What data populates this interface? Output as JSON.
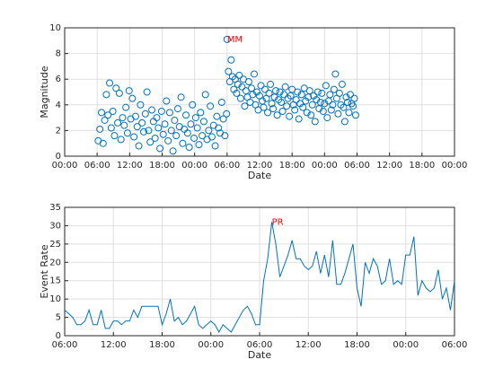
{
  "chart_data": [
    {
      "type": "scatter",
      "xlabel": "Date",
      "ylabel": "Magnitude",
      "color": "#0072bd",
      "grid": true,
      "x": [
        6.2,
        6.5,
        6.8,
        7.1,
        7.4,
        7.7,
        8.0,
        8.3,
        8.6,
        8.9,
        9.2,
        9.5,
        9.8,
        10.1,
        10.4,
        10.7,
        11.0,
        11.3,
        11.6,
        11.9,
        12.2,
        12.5,
        12.8,
        13.1,
        13.4,
        13.7,
        14.0,
        14.3,
        14.6,
        14.9,
        15.2,
        15.5,
        15.8,
        16.1,
        16.4,
        16.7,
        17.0,
        17.3,
        17.6,
        17.9,
        18.2,
        18.5,
        18.8,
        19.1,
        19.4,
        19.7,
        20.0,
        20.3,
        20.6,
        20.9,
        21.2,
        21.5,
        21.8,
        22.1,
        22.4,
        22.7,
        23.0,
        23.3,
        23.6,
        23.9,
        24.2,
        24.5,
        24.8,
        25.1,
        25.4,
        25.7,
        26.0,
        26.3,
        26.6,
        26.9,
        27.2,
        27.5,
        27.8,
        28.1,
        28.4,
        28.7,
        29.0,
        29.3,
        29.6,
        29.9,
        30.0,
        30.25,
        30.5,
        30.75,
        31.0,
        31.25,
        31.5,
        31.75,
        32.0,
        32.25,
        32.5,
        32.75,
        33.0,
        33.25,
        33.5,
        33.75,
        34.0,
        34.25,
        34.5,
        34.75,
        35.0,
        35.25,
        35.5,
        35.75,
        36.0,
        36.25,
        36.5,
        36.75,
        37.0,
        37.25,
        37.5,
        37.75,
        38.0,
        38.25,
        38.5,
        38.75,
        39.0,
        39.25,
        39.5,
        39.75,
        40.0,
        40.25,
        40.5,
        40.75,
        41.0,
        41.25,
        41.5,
        41.75,
        42.0,
        42.25,
        42.5,
        42.75,
        43.0,
        43.25,
        43.5,
        43.75,
        44.0,
        44.25,
        44.5,
        44.75,
        45.0,
        45.25,
        45.5,
        45.75,
        46.0,
        46.25,
        46.5,
        46.75,
        47.0,
        47.25,
        47.5,
        47.75,
        48.0,
        48.25,
        48.5,
        48.75,
        49.0,
        49.25,
        49.5,
        49.75,
        50.0,
        50.25,
        50.5,
        50.75,
        51.0,
        51.25,
        51.5,
        51.75,
        52.0,
        52.25,
        52.5,
        52.75,
        53.0,
        53.25,
        53.5,
        53.75
      ],
      "values": [
        1.2,
        2.1,
        3.4,
        1.0,
        2.8,
        4.8,
        3.2,
        5.7,
        2.2,
        3.5,
        1.6,
        5.3,
        2.6,
        4.9,
        1.3,
        3.0,
        2.4,
        3.8,
        1.8,
        5.1,
        2.9,
        4.5,
        1.5,
        3.1,
        2.3,
        0.8,
        4.0,
        2.6,
        1.9,
        3.3,
        5.0,
        2.0,
        1.1,
        3.6,
        2.7,
        1.4,
        3.0,
        2.2,
        0.6,
        3.5,
        1.7,
        2.5,
        4.3,
        1.2,
        3.4,
        2.0,
        0.4,
        2.8,
        1.6,
        3.7,
        2.3,
        4.6,
        1.0,
        2.1,
        3.2,
        1.8,
        0.7,
        2.5,
        4.0,
        1.4,
        3.0,
        2.2,
        0.9,
        3.4,
        1.6,
        2.7,
        4.8,
        1.3,
        2.0,
        3.9,
        1.5,
        2.4,
        0.8,
        3.1,
        2.2,
        1.8,
        4.2,
        2.9,
        1.6,
        3.3,
        9.1,
        6.6,
        5.8,
        7.5,
        6.2,
        5.2,
        6.0,
        4.9,
        5.6,
        6.3,
        4.5,
        5.4,
        6.0,
        3.9,
        5.1,
        4.6,
        5.8,
        4.2,
        5.3,
        4.8,
        6.4,
        4.0,
        5.0,
        3.6,
        4.7,
        5.5,
        4.3,
        3.8,
        5.2,
        4.5,
        3.4,
        4.9,
        5.6,
        4.1,
        3.7,
        4.6,
        5.1,
        3.2,
        4.4,
        5.0,
        4.2,
        3.5,
        4.8,
        5.4,
        3.9,
        4.5,
        3.1,
        4.7,
        5.2,
        4.0,
        3.6,
        4.4,
        5.0,
        2.9,
        4.1,
        4.8,
        3.8,
        5.3,
        4.3,
        3.4,
        4.6,
        5.1,
        3.2,
        4.0,
        4.7,
        2.7,
        4.4,
        5.0,
        3.7,
        4.2,
        4.9,
        3.5,
        4.1,
        5.5,
        3.0,
        4.3,
        4.8,
        3.6,
        4.0,
        5.2,
        6.4,
        4.5,
        3.3,
        4.9,
        4.0,
        5.6,
        3.8,
        2.7,
        4.6,
        4.2,
        3.4,
        4.8,
        4.1,
        3.9,
        4.5,
        3.2
      ],
      "xlim": [
        0,
        72
      ],
      "xticks": [
        {
          "value": 0,
          "label": "00:00"
        },
        {
          "value": 6,
          "label": "06:00"
        },
        {
          "value": 12,
          "label": "12:00"
        },
        {
          "value": 18,
          "label": "18:00"
        },
        {
          "value": 24,
          "label": "00:00"
        },
        {
          "value": 30,
          "label": "06:00"
        },
        {
          "value": 36,
          "label": "12:00"
        },
        {
          "value": 42,
          "label": "18:00"
        },
        {
          "value": 48,
          "label": "00:00"
        },
        {
          "value": 54,
          "label": "06:00"
        },
        {
          "value": 60,
          "label": "12:00"
        },
        {
          "value": 66,
          "label": "18:00"
        },
        {
          "value": 72,
          "label": "00:00"
        }
      ],
      "ylim": [
        0,
        10
      ],
      "yticks": [
        0,
        2,
        4,
        6,
        8,
        10
      ],
      "annotations": [
        {
          "text": "MM",
          "x": 30,
          "y": 9.1,
          "color": "#ff0000"
        }
      ]
    },
    {
      "type": "line",
      "xlabel": "Date",
      "ylabel": "Event Rate",
      "color": "#0072bd",
      "grid": true,
      "x": [
        0,
        0.5,
        1,
        1.5,
        2,
        2.5,
        3,
        3.5,
        4,
        4.5,
        5,
        5.5,
        6,
        6.5,
        7,
        7.5,
        8,
        8.5,
        9,
        9.5,
        10,
        10.5,
        11,
        11.5,
        12,
        12.5,
        13,
        13.5,
        14,
        14.5,
        15,
        15.5,
        16,
        16.5,
        17,
        17.5,
        18,
        18.5,
        19,
        19.5,
        20,
        20.5,
        21,
        21.5,
        22,
        22.5,
        23,
        23.5,
        24,
        24.5,
        25,
        25.5,
        26,
        26.5,
        27,
        27.5,
        28,
        28.5,
        29,
        29.5,
        30,
        30.5,
        31,
        31.5,
        32,
        32.5,
        33,
        33.5,
        34,
        34.5,
        35,
        35.5,
        36,
        36.5,
        37,
        37.5,
        38,
        38.5,
        39,
        39.5,
        40,
        40.5,
        41,
        41.5,
        42,
        42.5,
        43,
        43.5,
        44,
        44.5,
        45,
        45.5,
        46,
        46.5,
        47,
        47.5,
        48
      ],
      "values": [
        7,
        6,
        5,
        3,
        3,
        4,
        7,
        3,
        3,
        7,
        2,
        2,
        4,
        4,
        3,
        4,
        4,
        7,
        5,
        8,
        8,
        8,
        8,
        8,
        3,
        6,
        10,
        4,
        5,
        3,
        4,
        6,
        8,
        3,
        2,
        3,
        4,
        3,
        1,
        3,
        2,
        1,
        3,
        5,
        7,
        8,
        6,
        3,
        3,
        15,
        21,
        31,
        25,
        16,
        19,
        22,
        26,
        21,
        21,
        19,
        18,
        19,
        23,
        17,
        22,
        16,
        26,
        14,
        14,
        17,
        21,
        25,
        13,
        8,
        20,
        17,
        21,
        19,
        14,
        15,
        21,
        14,
        15,
        14,
        22,
        22,
        27,
        11,
        15,
        13,
        12,
        13,
        18,
        10,
        13,
        7,
        15
      ],
      "xlim": [
        0,
        48
      ],
      "xticks": [
        {
          "value": 0,
          "label": "06:00"
        },
        {
          "value": 6,
          "label": "12:00"
        },
        {
          "value": 12,
          "label": "18:00"
        },
        {
          "value": 18,
          "label": "00:00"
        },
        {
          "value": 24,
          "label": "06:00"
        },
        {
          "value": 30,
          "label": "12:00"
        },
        {
          "value": 36,
          "label": "18:00"
        },
        {
          "value": 42,
          "label": "00:00"
        },
        {
          "value": 48,
          "label": "06:00"
        }
      ],
      "ylim": [
        0,
        35
      ],
      "yticks": [
        0,
        5,
        10,
        15,
        20,
        25,
        30,
        35
      ],
      "annotations": [
        {
          "text": "PR",
          "x": 25.5,
          "y": 31,
          "color": "#ff0000"
        }
      ]
    }
  ]
}
